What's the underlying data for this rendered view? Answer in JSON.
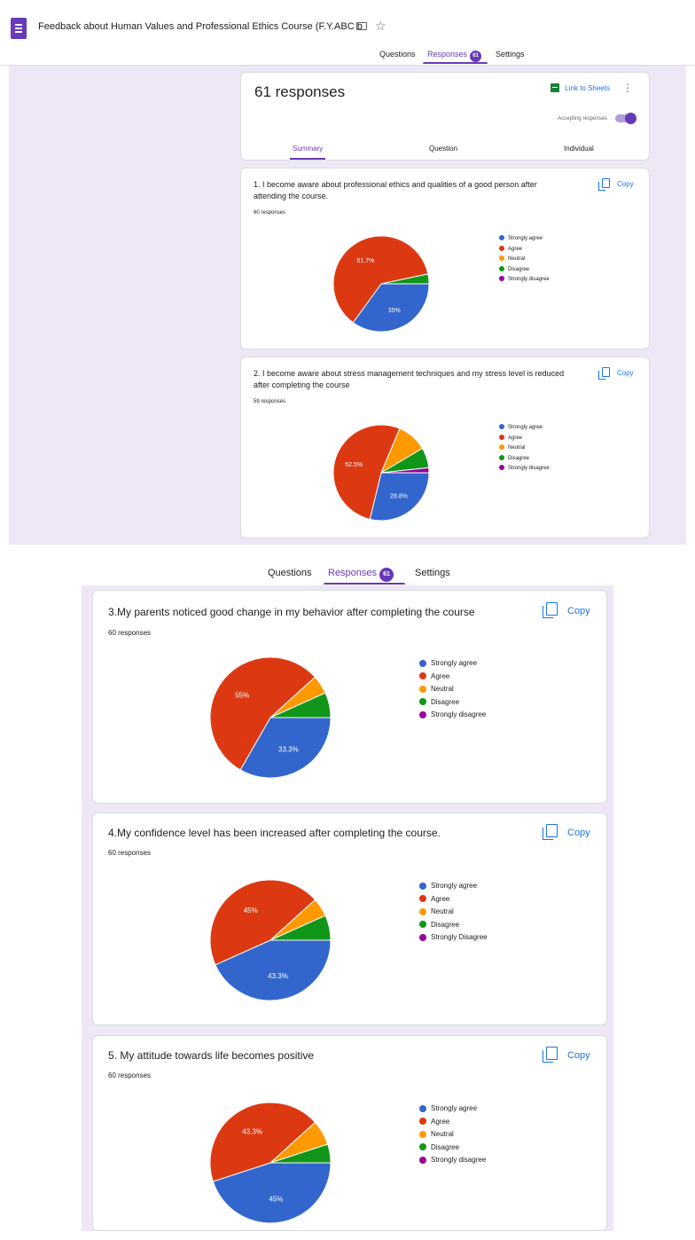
{
  "app": {
    "title": "Feedback about Human Values and Professional Ethics Course (F.Y.ABC b",
    "tabs": [
      "Questions",
      "Responses",
      "Settings"
    ],
    "responses_badge": "61"
  },
  "summary_card": {
    "count": "61 responses",
    "link_sheets": "Link to Sheets",
    "accepting": "Accepting responses",
    "subtabs": [
      "Summary",
      "Question",
      "Individual"
    ]
  },
  "copy_label": "Copy",
  "colors": {
    "Strongly agree": "#3366cc",
    "Agree": "#dc3912",
    "Neutral": "#ff9900",
    "Disagree": "#109618",
    "Strongly disagree": "#990099"
  },
  "questions": [
    {
      "title": "1. I become aware about professional ethics and qualities of a good person after attending the course.",
      "responses": "60 responses",
      "legend": [
        "Strongly agree",
        "Agree",
        "Neutral",
        "Disagree",
        "Strongly disagree"
      ],
      "labels": [
        "35%",
        "61.7%"
      ]
    },
    {
      "title": "2. I become aware about stress management techniques and my stress level is reduced after completing the course",
      "responses": "59 responses",
      "legend": [
        "Strongly agree",
        "Agree",
        "Neutral",
        "Disagree",
        "Strongly disagree"
      ],
      "labels": [
        "28.8%",
        "52.5%"
      ]
    },
    {
      "title": "3.My parents noticed good change in my behavior after completing the course",
      "responses": "60 responses",
      "legend": [
        "Strongly agree",
        "Agree",
        "Neutral",
        "Disagree",
        "Strongly disagree"
      ],
      "labels": [
        "33.3%",
        "55%"
      ]
    },
    {
      "title": "4.My confidence level has been increased after completing the course.",
      "responses": "60 responses",
      "legend": [
        "Strongly agree",
        "Agree",
        "Neutral",
        "Disagree",
        "Strongly Disagree"
      ],
      "labels": [
        "43.3%",
        "45%"
      ]
    },
    {
      "title": "5. My attitude towards life becomes positive",
      "responses": "60 responses",
      "legend": [
        "Strongly agree",
        "Agree",
        "Neutral",
        "Disagree",
        "Strongly disagree"
      ],
      "labels": [
        "45%",
        "43.3%"
      ]
    }
  ],
  "chart_data": [
    {
      "type": "pie",
      "title": "1. I become aware about professional ethics and qualities of a good person after attending the course.",
      "categories": [
        "Strongly agree",
        "Agree",
        "Neutral",
        "Disagree",
        "Strongly disagree"
      ],
      "values": [
        35,
        61.7,
        0,
        3.3,
        0
      ]
    },
    {
      "type": "pie",
      "title": "2. I become aware about stress management techniques and my stress level is reduced after completing the course",
      "categories": [
        "Strongly agree",
        "Agree",
        "Neutral",
        "Disagree",
        "Strongly disagree"
      ],
      "values": [
        28.8,
        52.5,
        10.2,
        6.8,
        1.7
      ]
    },
    {
      "type": "pie",
      "title": "3.My parents noticed good change in my behavior after completing the course",
      "categories": [
        "Strongly agree",
        "Agree",
        "Neutral",
        "Disagree",
        "Strongly disagree"
      ],
      "values": [
        33.3,
        55,
        5,
        6.7,
        0
      ]
    },
    {
      "type": "pie",
      "title": "4.My confidence level has been increased after completing the course.",
      "categories": [
        "Strongly agree",
        "Agree",
        "Neutral",
        "Disagree",
        "Strongly Disagree"
      ],
      "values": [
        43.3,
        45,
        5,
        6.7,
        0
      ]
    },
    {
      "type": "pie",
      "title": "5. My attitude towards life becomes positive",
      "categories": [
        "Strongly agree",
        "Agree",
        "Neutral",
        "Disagree",
        "Strongly disagree"
      ],
      "values": [
        45,
        43.3,
        6.7,
        5,
        0
      ]
    }
  ]
}
